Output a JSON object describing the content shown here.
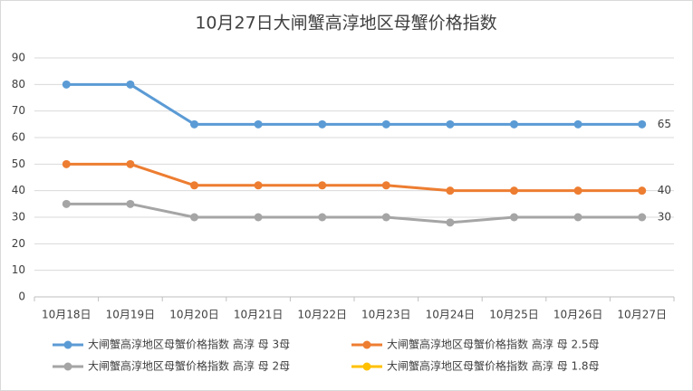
{
  "chart_data": {
    "type": "line",
    "title": "10月27日大闸蟹高淳地区母蟹价格指数",
    "categories": [
      "10月18日",
      "10月19日",
      "10月20日",
      "10月21日",
      "10月22日",
      "10月23日",
      "10月24日",
      "10月25日",
      "10月26日",
      "10月27日"
    ],
    "series": [
      {
        "name": "大闸蟹高淳地区母蟹价格指数 高淳 母 3母",
        "color": "#5b9bd5",
        "values": [
          80,
          80,
          65,
          65,
          65,
          65,
          65,
          65,
          65,
          65
        ]
      },
      {
        "name": "大闸蟹高淳地区母蟹价格指数 高淳 母 2.5母",
        "color": "#ed7d31",
        "values": [
          50,
          50,
          42,
          42,
          42,
          42,
          40,
          40,
          40,
          40
        ]
      },
      {
        "name": "大闸蟹高淳地区母蟹价格指数 高淳 母 2母",
        "color": "#a5a5a5",
        "values": [
          35,
          35,
          30,
          30,
          30,
          30,
          28,
          30,
          30,
          30
        ]
      },
      {
        "name": "大闸蟹高淳地区母蟹价格指数 高淳 母 1.8母",
        "color": "#ffc000",
        "values": [
          null,
          null,
          null,
          null,
          null,
          null,
          null,
          null,
          null,
          null
        ]
      }
    ],
    "ylim": [
      0,
      90
    ],
    "yticks": [
      0,
      10,
      20,
      30,
      40,
      50,
      60,
      70,
      80,
      90
    ],
    "grid": true
  }
}
